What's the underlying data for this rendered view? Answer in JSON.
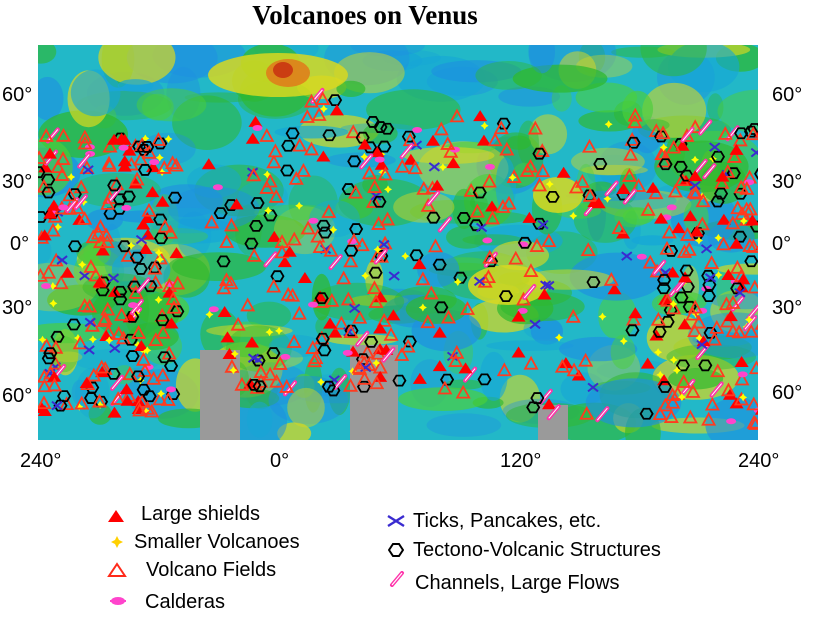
{
  "title": "Volcanoes on Venus",
  "lat_labels_left": [
    "60°",
    "30°",
    "0°",
    "30°",
    "60°"
  ],
  "lat_labels_right": [
    "60°",
    "30°",
    "0°",
    "30°",
    "60°"
  ],
  "lon_labels": [
    "240°",
    "0°",
    "120°",
    "240°"
  ],
  "legend": {
    "large_shields": "Large shields",
    "smaller_volcanoes": "Smaller Volcanoes",
    "volcano_fields": "Volcano Fields",
    "calderas": "Calderas",
    "ticks_pancakes": "Ticks, Pancakes, etc.",
    "tectono_volcanic": "Tectono-Volcanic Structures",
    "channels_flows": "Channels, Large Flows"
  },
  "colors": {
    "large_shields": "#ff0000",
    "smaller_volcanoes": "#ffff00",
    "volcano_fields": "#ff3b1f",
    "calderas": "#ff44cc",
    "ticks_pancakes": "#3a2bd0",
    "tectono_volcanic": "#000000",
    "channels_flows": "#ff33aa",
    "terrain_low": "#16a6d6",
    "terrain_mid": "#2fb82f",
    "terrain_high": "#d8d820",
    "terrain_peak": "#e07a1a",
    "no_data": "#9a9a9a"
  }
}
